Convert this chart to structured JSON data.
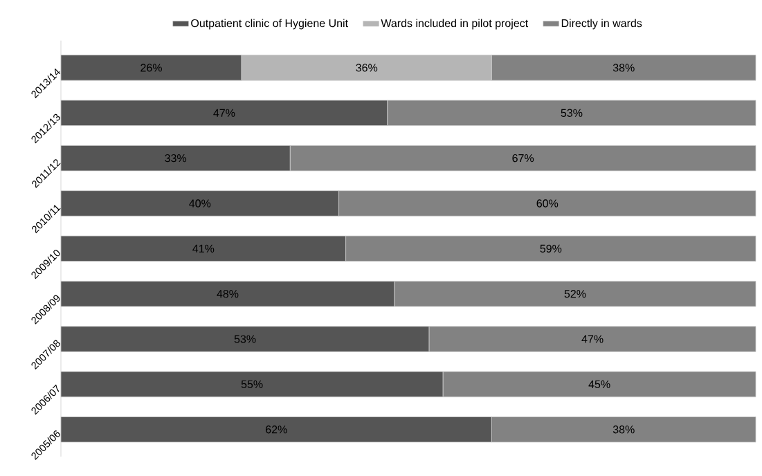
{
  "chart_data": {
    "type": "bar",
    "orientation": "horizontal",
    "stacked": true,
    "legend": "top",
    "categories": [
      "2013/14",
      "2012/13",
      "2011/12",
      "2010/11",
      "2009/10",
      "2008/09",
      "2007/08",
      "2006/07",
      "2005/06"
    ],
    "series": [
      {
        "name": "Outpatient clinic of Hygiene Unit",
        "color": "#555555",
        "values": [
          26,
          47,
          33,
          40,
          41,
          48,
          53,
          55,
          62
        ],
        "value_labels": [
          "26%",
          "47%",
          "33%",
          "40%",
          "41%",
          "48%",
          "53%",
          "55%",
          "62%"
        ]
      },
      {
        "name": "Wards included in pilot project",
        "color": "#b5b5b5",
        "values": [
          36,
          null,
          null,
          null,
          null,
          null,
          null,
          null,
          null
        ],
        "value_labels": [
          "36%",
          null,
          null,
          null,
          null,
          null,
          null,
          null,
          null
        ]
      },
      {
        "name": "Directly in wards",
        "color": "#828282",
        "values": [
          38,
          53,
          67,
          60,
          59,
          52,
          47,
          45,
          38
        ],
        "value_labels": [
          "38%",
          "53%",
          "67%",
          "60%",
          "59%",
          "52%",
          "47%",
          "45%",
          "38%"
        ]
      }
    ]
  }
}
